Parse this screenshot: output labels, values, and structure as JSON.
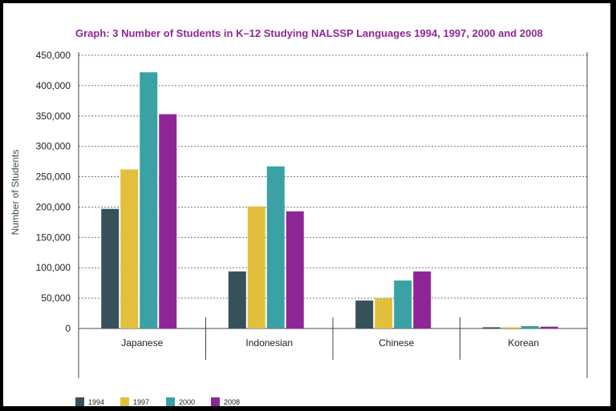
{
  "chart_data": {
    "type": "bar",
    "title": "Graph: 3 Number of Students in K–12 Studying NALSSP Languages 1994, 1997, 2000 and 2008",
    "xlabel": "",
    "ylabel": "Number of Students",
    "ylim": [
      0,
      450000
    ],
    "yticks": [
      0,
      50000,
      100000,
      150000,
      200000,
      250000,
      300000,
      350000,
      400000,
      450000
    ],
    "ytick_labels": [
      "0",
      "50,000",
      "100,000",
      "150,000",
      "200,000",
      "250,000",
      "300,000",
      "350,000",
      "400,000",
      "450,000"
    ],
    "grid": true,
    "legend_position": "bottom-left",
    "categories": [
      "Japanese",
      "Indonesian",
      "Chinese",
      "Korean"
    ],
    "series": [
      {
        "name": "1994",
        "color": "#36515a",
        "values": [
          197000,
          94000,
          46000,
          2000
        ]
      },
      {
        "name": "1997",
        "color": "#e2bf3c",
        "values": [
          262000,
          201000,
          50000,
          2000
        ]
      },
      {
        "name": "2000",
        "color": "#3aa1a5",
        "values": [
          422000,
          267000,
          79000,
          4000
        ]
      },
      {
        "name": "2008",
        "color": "#8e2697",
        "values": [
          353000,
          193000,
          94000,
          3000
        ]
      }
    ],
    "title_color": "#8e2697"
  }
}
